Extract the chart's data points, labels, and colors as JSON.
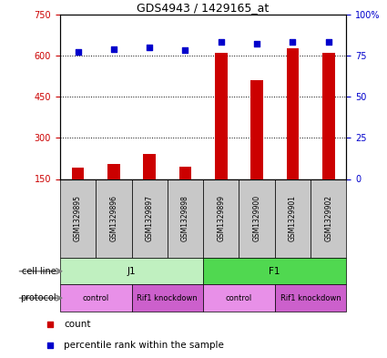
{
  "title": "GDS4943 / 1429165_at",
  "samples": [
    "GSM1329895",
    "GSM1329896",
    "GSM1329897",
    "GSM1329898",
    "GSM1329899",
    "GSM1329900",
    "GSM1329901",
    "GSM1329902"
  ],
  "counts": [
    190,
    205,
    240,
    195,
    610,
    510,
    625,
    610
  ],
  "percentiles": [
    77,
    79,
    80,
    78,
    83,
    82,
    83,
    83
  ],
  "ylim_left": [
    150,
    750
  ],
  "ylim_right": [
    0,
    100
  ],
  "yticks_left": [
    150,
    300,
    450,
    600,
    750
  ],
  "yticks_right": [
    0,
    25,
    50,
    75,
    100
  ],
  "bar_color": "#cc0000",
  "dot_color": "#0000cc",
  "bar_width": 0.35,
  "cell_line_labels": [
    {
      "label": "J1",
      "start": 0,
      "end": 4
    },
    {
      "label": "F1",
      "start": 4,
      "end": 8
    }
  ],
  "cell_line_colors": [
    "#c0f0c0",
    "#50d850"
  ],
  "protocol_labels": [
    {
      "label": "control",
      "start": 0,
      "end": 2
    },
    {
      "label": "Rif1 knockdown",
      "start": 2,
      "end": 4
    },
    {
      "label": "control",
      "start": 4,
      "end": 6
    },
    {
      "label": "Rif1 knockdown",
      "start": 6,
      "end": 8
    }
  ],
  "protocol_colors": [
    "#e890e8",
    "#cc60cc"
  ],
  "legend_count_color": "#cc0000",
  "legend_dot_color": "#0000cc",
  "bg_color": "#ffffff",
  "label_area_color": "#c8c8c8",
  "grid_lines": [
    300,
    450,
    600
  ]
}
